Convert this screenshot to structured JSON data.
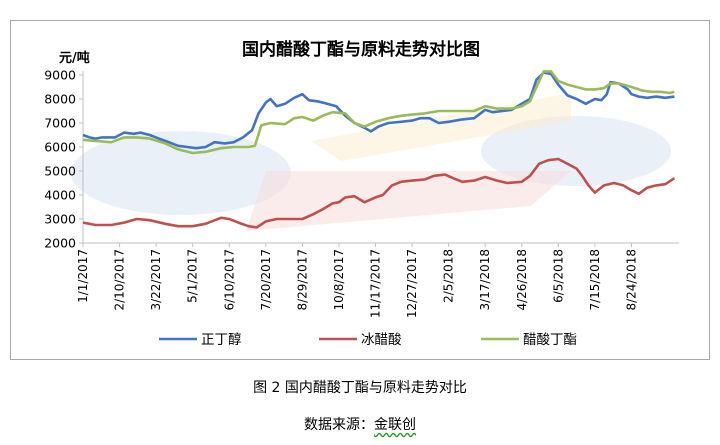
{
  "chart_data": {
    "type": "line",
    "title": "国内醋酸丁酯与原料走势对比图",
    "ylabel": "元/吨",
    "xlabel": "",
    "ylim": [
      2000,
      9000
    ],
    "yticks": [
      2000,
      3000,
      4000,
      5000,
      6000,
      7000,
      8000,
      9000
    ],
    "xlim": [
      "1/1/2017",
      "10/15/2018"
    ],
    "xticks": [
      "1/1/2017",
      "2/10/2017",
      "3/22/2017",
      "5/1/2017",
      "6/10/2017",
      "7/20/2017",
      "8/29/2017",
      "10/8/2017",
      "11/17/2017",
      "12/27/2017",
      "2/5/2018",
      "3/17/2018",
      "4/26/2018",
      "6/5/2018",
      "7/15/2018",
      "8/24/2018"
    ],
    "grid": false,
    "legend_position": "bottom",
    "series": [
      {
        "name": "正丁醇",
        "color": "#4472c4",
        "points": [
          [
            "1/1/2017",
            6500
          ],
          [
            "1/8/2017",
            6400
          ],
          [
            "1/15/2017",
            6350
          ],
          [
            "1/22/2017",
            6400
          ],
          [
            "2/5/2017",
            6400
          ],
          [
            "2/15/2017",
            6600
          ],
          [
            "2/25/2017",
            6550
          ],
          [
            "3/5/2017",
            6600
          ],
          [
            "3/15/2017",
            6500
          ],
          [
            "3/25/2017",
            6350
          ],
          [
            "4/5/2017",
            6200
          ],
          [
            "4/15/2017",
            6050
          ],
          [
            "4/25/2017",
            6000
          ],
          [
            "5/5/2017",
            5950
          ],
          [
            "5/15/2017",
            6000
          ],
          [
            "5/25/2017",
            6200
          ],
          [
            "6/5/2017",
            6150
          ],
          [
            "6/15/2017",
            6200
          ],
          [
            "6/25/2017",
            6400
          ],
          [
            "7/5/2017",
            6700
          ],
          [
            "7/12/2017",
            7400
          ],
          [
            "7/20/2017",
            7850
          ],
          [
            "7/25/2017",
            8000
          ],
          [
            "8/1/2017",
            7700
          ],
          [
            "8/10/2017",
            7800
          ],
          [
            "8/20/2017",
            8050
          ],
          [
            "8/29/2017",
            8200
          ],
          [
            "9/5/2017",
            7950
          ],
          [
            "9/15/2017",
            7900
          ],
          [
            "9/25/2017",
            7800
          ],
          [
            "10/5/2017",
            7700
          ],
          [
            "10/15/2017",
            7300
          ],
          [
            "10/25/2017",
            7000
          ],
          [
            "11/5/2017",
            6800
          ],
          [
            "11/12/2017",
            6650
          ],
          [
            "11/20/2017",
            6850
          ],
          [
            "12/1/2017",
            7000
          ],
          [
            "12/15/2017",
            7050
          ],
          [
            "12/27/2017",
            7100
          ],
          [
            "1/5/2018",
            7200
          ],
          [
            "1/15/2018",
            7200
          ],
          [
            "1/25/2018",
            7000
          ],
          [
            "2/5/2018",
            7050
          ],
          [
            "2/20/2018",
            7150
          ],
          [
            "3/5/2018",
            7200
          ],
          [
            "3/17/2018",
            7550
          ],
          [
            "3/25/2018",
            7450
          ],
          [
            "4/5/2018",
            7500
          ],
          [
            "4/15/2018",
            7550
          ],
          [
            "4/26/2018",
            7800
          ],
          [
            "5/5/2018",
            8000
          ],
          [
            "5/12/2018",
            8800
          ],
          [
            "5/20/2018",
            9100
          ],
          [
            "5/28/2018",
            9050
          ],
          [
            "6/5/2018",
            8600
          ],
          [
            "6/15/2018",
            8150
          ],
          [
            "6/25/2018",
            8000
          ],
          [
            "7/5/2018",
            7800
          ],
          [
            "7/15/2018",
            8000
          ],
          [
            "7/22/2018",
            7950
          ],
          [
            "7/28/2018",
            8200
          ],
          [
            "8/1/2018",
            8700
          ],
          [
            "8/10/2018",
            8650
          ],
          [
            "8/20/2018",
            8400
          ],
          [
            "8/24/2018",
            8200
          ],
          [
            "9/1/2018",
            8100
          ],
          [
            "9/10/2018",
            8050
          ],
          [
            "9/20/2018",
            8100
          ],
          [
            "9/30/2018",
            8050
          ],
          [
            "10/10/2018",
            8100
          ]
        ]
      },
      {
        "name": "冰醋酸",
        "color": "#c0504d",
        "points": [
          [
            "1/1/2017",
            2850
          ],
          [
            "1/15/2017",
            2750
          ],
          [
            "2/1/2017",
            2750
          ],
          [
            "2/15/2017",
            2850
          ],
          [
            "3/1/2017",
            3000
          ],
          [
            "3/15/2017",
            2950
          ],
          [
            "4/1/2017",
            2800
          ],
          [
            "4/15/2017",
            2700
          ],
          [
            "5/1/2017",
            2700
          ],
          [
            "5/15/2017",
            2800
          ],
          [
            "6/1/2017",
            3050
          ],
          [
            "6/10/2017",
            3000
          ],
          [
            "6/20/2017",
            2850
          ],
          [
            "7/1/2017",
            2700
          ],
          [
            "7/10/2017",
            2650
          ],
          [
            "7/20/2017",
            2900
          ],
          [
            "8/1/2017",
            3000
          ],
          [
            "8/15/2017",
            3000
          ],
          [
            "8/29/2017",
            3000
          ],
          [
            "9/10/2017",
            3200
          ],
          [
            "9/20/2017",
            3400
          ],
          [
            "10/1/2017",
            3650
          ],
          [
            "10/8/2017",
            3700
          ],
          [
            "10/15/2017",
            3900
          ],
          [
            "10/25/2017",
            3950
          ],
          [
            "11/5/2017",
            3700
          ],
          [
            "11/17/2017",
            3900
          ],
          [
            "11/25/2017",
            4000
          ],
          [
            "12/5/2017",
            4400
          ],
          [
            "12/15/2017",
            4550
          ],
          [
            "12/27/2017",
            4600
          ],
          [
            "1/10/2018",
            4650
          ],
          [
            "1/20/2018",
            4800
          ],
          [
            "2/1/2018",
            4850
          ],
          [
            "2/10/2018",
            4700
          ],
          [
            "2/20/2018",
            4550
          ],
          [
            "3/5/2018",
            4600
          ],
          [
            "3/17/2018",
            4750
          ],
          [
            "3/30/2018",
            4600
          ],
          [
            "4/10/2018",
            4500
          ],
          [
            "4/26/2018",
            4550
          ],
          [
            "5/5/2018",
            4800
          ],
          [
            "5/15/2018",
            5300
          ],
          [
            "5/25/2018",
            5450
          ],
          [
            "6/5/2018",
            5500
          ],
          [
            "6/15/2018",
            5300
          ],
          [
            "6/25/2018",
            5100
          ],
          [
            "7/1/2018",
            4800
          ],
          [
            "7/8/2018",
            4400
          ],
          [
            "7/15/2018",
            4100
          ],
          [
            "7/25/2018",
            4400
          ],
          [
            "8/5/2018",
            4500
          ],
          [
            "8/15/2018",
            4400
          ],
          [
            "8/24/2018",
            4200
          ],
          [
            "9/1/2018",
            4050
          ],
          [
            "9/10/2018",
            4300
          ],
          [
            "9/20/2018",
            4400
          ],
          [
            "9/30/2018",
            4450
          ],
          [
            "10/10/2018",
            4700
          ]
        ]
      },
      {
        "name": "醋酸丁酯",
        "color": "#9bbb59",
        "points": [
          [
            "1/1/2017",
            6300
          ],
          [
            "1/15/2017",
            6250
          ],
          [
            "2/1/2017",
            6200
          ],
          [
            "2/15/2017",
            6400
          ],
          [
            "3/1/2017",
            6400
          ],
          [
            "3/15/2017",
            6350
          ],
          [
            "4/1/2017",
            6150
          ],
          [
            "4/15/2017",
            5900
          ],
          [
            "5/1/2017",
            5750
          ],
          [
            "5/15/2017",
            5800
          ],
          [
            "6/1/2017",
            5950
          ],
          [
            "6/15/2017",
            6000
          ],
          [
            "7/1/2017",
            6000
          ],
          [
            "7/8/2017",
            6050
          ],
          [
            "7/15/2017",
            6900
          ],
          [
            "7/25/2017",
            7000
          ],
          [
            "8/10/2017",
            6950
          ],
          [
            "8/20/2017",
            7200
          ],
          [
            "8/29/2017",
            7250
          ],
          [
            "9/10/2017",
            7100
          ],
          [
            "9/20/2017",
            7300
          ],
          [
            "10/1/2017",
            7450
          ],
          [
            "10/15/2017",
            7400
          ],
          [
            "10/25/2017",
            7000
          ],
          [
            "11/5/2017",
            6850
          ],
          [
            "11/17/2017",
            7050
          ],
          [
            "12/1/2017",
            7200
          ],
          [
            "12/15/2017",
            7300
          ],
          [
            "12/27/2017",
            7350
          ],
          [
            "1/10/2018",
            7400
          ],
          [
            "1/25/2018",
            7500
          ],
          [
            "2/5/2018",
            7500
          ],
          [
            "2/20/2018",
            7500
          ],
          [
            "3/5/2018",
            7500
          ],
          [
            "3/17/2018",
            7700
          ],
          [
            "3/30/2018",
            7600
          ],
          [
            "4/15/2018",
            7600
          ],
          [
            "4/26/2018",
            7700
          ],
          [
            "5/5/2018",
            7900
          ],
          [
            "5/12/2018",
            8500
          ],
          [
            "5/20/2018",
            9150
          ],
          [
            "5/28/2018",
            9150
          ],
          [
            "6/5/2018",
            8750
          ],
          [
            "6/15/2018",
            8600
          ],
          [
            "6/25/2018",
            8500
          ],
          [
            "7/5/2018",
            8400
          ],
          [
            "7/15/2018",
            8400
          ],
          [
            "7/25/2018",
            8450
          ],
          [
            "8/1/2018",
            8650
          ],
          [
            "8/10/2018",
            8650
          ],
          [
            "8/24/2018",
            8500
          ],
          [
            "9/5/2018",
            8350
          ],
          [
            "9/15/2018",
            8300
          ],
          [
            "9/25/2018",
            8300
          ],
          [
            "10/5/2018",
            8250
          ],
          [
            "10/10/2018",
            8300
          ]
        ]
      }
    ]
  },
  "caption": "图 2    国内醋酸丁酯与原料走势对比",
  "source": {
    "prefix": "数据来源：",
    "name": "金联创"
  }
}
